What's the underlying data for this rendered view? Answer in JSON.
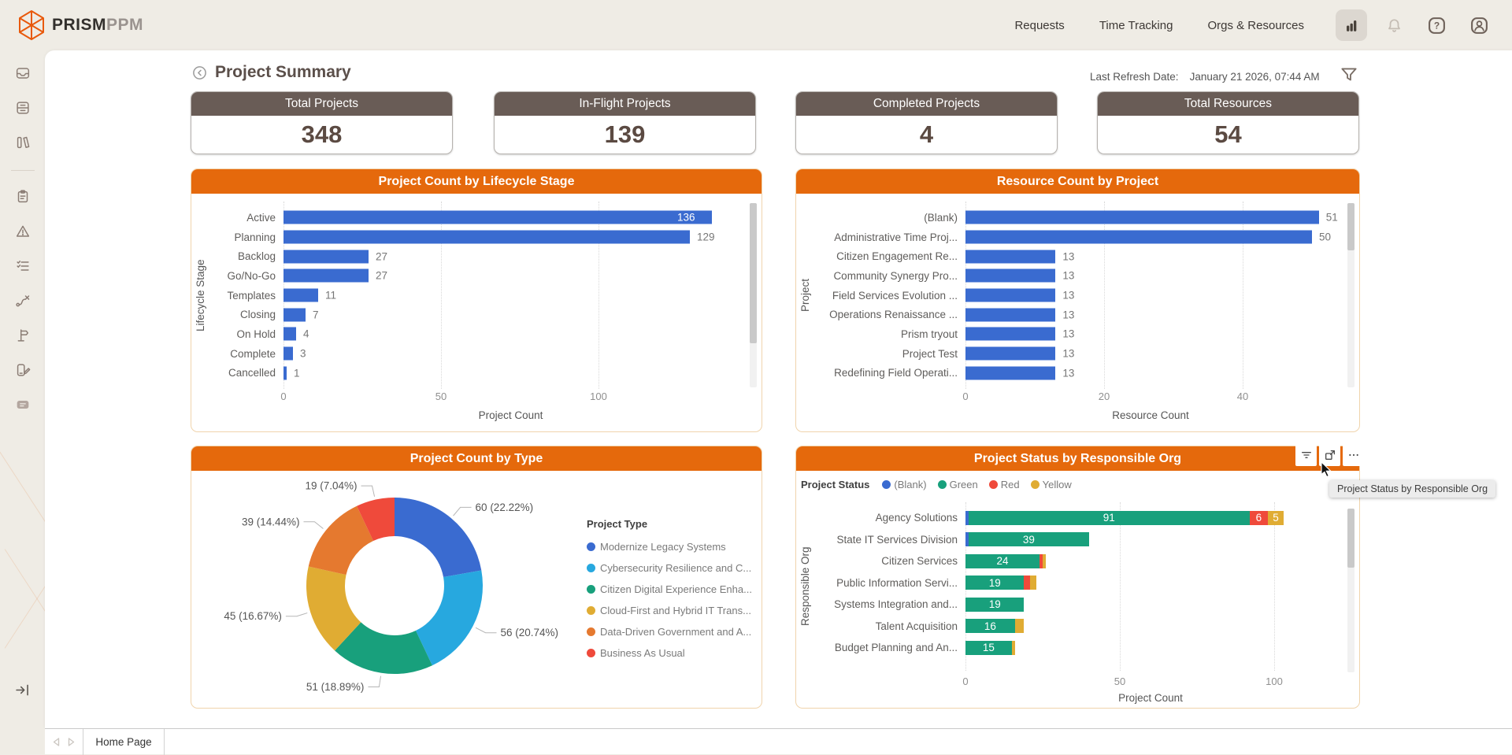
{
  "topbar": {
    "brand_prism": "PRISM",
    "brand_ppm": "PPM",
    "nav": [
      {
        "label": "Requests"
      },
      {
        "label": "Time Tracking"
      },
      {
        "label": "Orgs & Resources"
      }
    ]
  },
  "page": {
    "title": "Project Summary",
    "refresh_label": "Last Refresh Date:",
    "refresh_value": "January 21 2026, 07:44 AM"
  },
  "kpis": [
    {
      "label": "Total Projects",
      "value": "348"
    },
    {
      "label": "In-Flight Projects",
      "value": "139"
    },
    {
      "label": "Completed Projects",
      "value": "4"
    },
    {
      "label": "Total Resources",
      "value": "54"
    }
  ],
  "sidebar": {
    "icons": [
      "inbox",
      "storage",
      "library",
      "clipboard",
      "alerts",
      "checklist",
      "workflow",
      "signpost",
      "devices",
      "badge"
    ],
    "collapse_icon": "collapse-to-left"
  },
  "footer": {
    "tab": "Home Page"
  },
  "tooltip": {
    "text": "Project Status by Responsible Org"
  },
  "colors": {
    "accent_orange": "#E5690C",
    "header_taupe": "#695C56",
    "bar_blue": "#3A6BD0",
    "green": "#18A07C",
    "red": "#EF4A3B",
    "yellow": "#E0AC33",
    "cyan": "#27A8DF",
    "slice_orange": "#E5792F"
  },
  "chart_data": [
    {
      "type": "bar",
      "title": "Project Count by Lifecycle Stage",
      "xlabel": "Project Count",
      "ylabel": "Lifecycle Stage",
      "categories": [
        "Active",
        "Planning",
        "Backlog",
        "Go/No-Go",
        "Templates",
        "Closing",
        "On Hold",
        "Complete",
        "Cancelled"
      ],
      "values": [
        136,
        129,
        27,
        27,
        11,
        7,
        4,
        3,
        1
      ],
      "label_inside": [
        true,
        false,
        false,
        false,
        false,
        false,
        false,
        false,
        false
      ],
      "xticks": [
        0,
        50,
        100
      ],
      "xlim": [
        0,
        150
      ],
      "bar_color": "#3A6BD0",
      "grid": true,
      "legend_position": "none"
    },
    {
      "type": "bar",
      "title": "Resource Count by Project",
      "xlabel": "Resource Count",
      "ylabel": "Project",
      "categories": [
        "(Blank)",
        "Administrative Time Proj...",
        "Citizen Engagement Re...",
        "Community Synergy Pro...",
        "Field Services Evolution ...",
        "Operations Renaissance ...",
        "Prism tryout",
        "Project Test",
        "Redefining Field Operati..."
      ],
      "values": [
        51,
        50,
        13,
        13,
        13,
        13,
        13,
        13,
        13
      ],
      "label_inside": [
        false,
        false,
        false,
        false,
        false,
        false,
        false,
        false,
        false
      ],
      "xticks": [
        0,
        20,
        40
      ],
      "xlim": [
        0,
        56
      ],
      "bar_color": "#3A6BD0",
      "grid": true,
      "legend_position": "none"
    },
    {
      "type": "pie",
      "subtype": "donut",
      "title": "Project Count by Type",
      "legend_title": "Project Type",
      "legend_position": "right",
      "slices": [
        {
          "label": "Modernize Legacy Systems",
          "value": 60,
          "pct": "22.22%",
          "color": "#3A6BD0"
        },
        {
          "label": "Cybersecurity Resilience and C...",
          "value": 56,
          "pct": "20.74%",
          "color": "#27A8DF"
        },
        {
          "label": "Citizen Digital Experience Enha...",
          "value": 51,
          "pct": "18.89%",
          "color": "#18A07C"
        },
        {
          "label": "Cloud-First and Hybrid IT Trans...",
          "value": 45,
          "pct": "16.67%",
          "color": "#E0AC33"
        },
        {
          "label": "Data-Driven Government and A...",
          "value": 39,
          "pct": "14.44%",
          "color": "#E5792F"
        },
        {
          "label": "Business As Usual",
          "value": 19,
          "pct": "7.04%",
          "color": "#EF4A3B"
        }
      ]
    },
    {
      "type": "bar",
      "subtype": "stacked-horizontal",
      "title": "Project Status by Responsible Org",
      "legend_title": "Project Status",
      "legend_position": "top",
      "xlabel": "Project Count",
      "ylabel": "Responsible Org",
      "categories": [
        "Agency Solutions",
        "State IT Services Division",
        "Citizen Services",
        "Public Information Servi...",
        "Systems Integration and...",
        "Talent Acquisition",
        "Budget Planning and An..."
      ],
      "series": [
        {
          "name": "(Blank)",
          "color": "#3A6BD0",
          "values": [
            1,
            1,
            0,
            0,
            0,
            0,
            0
          ]
        },
        {
          "name": "Green",
          "color": "#18A07C",
          "values": [
            91,
            39,
            24,
            19,
            19,
            16,
            15
          ]
        },
        {
          "name": "Red",
          "color": "#EF4A3B",
          "values": [
            6,
            0,
            1,
            2,
            0,
            0,
            0
          ]
        },
        {
          "name": "Yellow",
          "color": "#E0AC33",
          "values": [
            5,
            0,
            1,
            2,
            0,
            3,
            1
          ]
        }
      ],
      "xticks": [
        0,
        50,
        100
      ],
      "xlim": [
        0,
        128
      ],
      "grid": true
    }
  ]
}
